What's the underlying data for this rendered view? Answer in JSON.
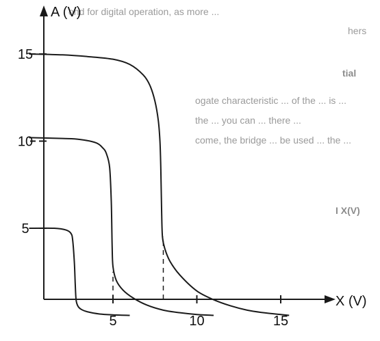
{
  "chart_data": {
    "type": "line",
    "xlabel": "X (V)",
    "ylabel": "A (V)",
    "xlim": [
      0,
      16.8
    ],
    "ylim": [
      0,
      17
    ],
    "x_ticks": [
      5,
      10,
      15
    ],
    "y_ticks": [
      5,
      10,
      15
    ],
    "grid": false,
    "legend": "none",
    "series": [
      {
        "values": [
          [
            0,
            5
          ],
          [
            1.5,
            5
          ],
          [
            2.2,
            4.9
          ],
          [
            2.5,
            4.7
          ],
          [
            2.6,
            4.3
          ],
          [
            2.7,
            3.0
          ],
          [
            2.75,
            1.8
          ],
          [
            2.8,
            0.9
          ],
          [
            2.9,
            0.55
          ],
          [
            3.1,
            0.35
          ],
          [
            3.5,
            0.2
          ],
          [
            4.2,
            0.08
          ],
          [
            5,
            0.03
          ],
          [
            6,
            0
          ]
        ]
      },
      {
        "values": [
          [
            0,
            10.2
          ],
          [
            2,
            10.15
          ],
          [
            3,
            10.1
          ],
          [
            4,
            9.9
          ],
          [
            4.4,
            9.6
          ],
          [
            4.6,
            9.3
          ],
          [
            4.8,
            8.5
          ],
          [
            4.9,
            6.5
          ],
          [
            4.95,
            4.0
          ],
          [
            5.0,
            2.8
          ],
          [
            5.2,
            2.0
          ],
          [
            5.6,
            1.45
          ],
          [
            6.2,
            1.0
          ],
          [
            7,
            0.6
          ],
          [
            8,
            0.3
          ],
          [
            9,
            0.15
          ],
          [
            10,
            0.05
          ],
          [
            11,
            0
          ]
        ]
      },
      {
        "values": [
          [
            0,
            15
          ],
          [
            2,
            14.95
          ],
          [
            3.5,
            14.85
          ],
          [
            5,
            14.7
          ],
          [
            6,
            14.4
          ],
          [
            6.8,
            13.8
          ],
          [
            7.2,
            13.2
          ],
          [
            7.5,
            12.3
          ],
          [
            7.7,
            11.2
          ],
          [
            7.8,
            10.0
          ],
          [
            7.85,
            8.5
          ],
          [
            7.9,
            6.0
          ],
          [
            7.95,
            4.5
          ],
          [
            8.1,
            3.8
          ],
          [
            8.4,
            3.1
          ],
          [
            9,
            2.3
          ],
          [
            10,
            1.4
          ],
          [
            11,
            0.9
          ],
          [
            12,
            0.55
          ],
          [
            13,
            0.3
          ],
          [
            14,
            0.15
          ],
          [
            15,
            0.05
          ],
          [
            15.5,
            0
          ]
        ]
      }
    ],
    "guides": [
      {
        "x": 3,
        "y_top": 0.9
      },
      {
        "x": 5,
        "y_top": 2.5
      },
      {
        "x": 8,
        "y_top": 4.5
      }
    ]
  },
  "bleed_through": {
    "line1": "ond for digital operation, as more ...",
    "line2": "hers",
    "line3": "tial",
    "line4": "ogate characteristic ... of the ... is ...",
    "line5": "the ... you can ... there ...",
    "line6": "come, the bridge ... be used ... the ...",
    "line7": "I X(V)"
  }
}
